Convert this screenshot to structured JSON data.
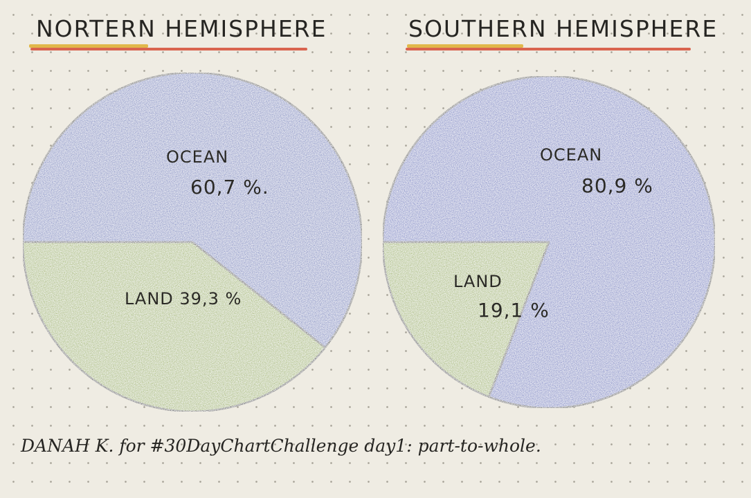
{
  "chart_data": [
    {
      "type": "pie",
      "title": "NORTERN HEMISPHERE",
      "slices": [
        {
          "label": "OCEAN",
          "value_label": "60,7 %.",
          "value": 60.7,
          "color": "#6f7fbf"
        },
        {
          "label": "LAND",
          "value_label": "39,3 %",
          "value": 39.3,
          "color": "#9db35a"
        }
      ]
    },
    {
      "type": "pie",
      "title": "SOUTHERN HEMISPHERE",
      "slices": [
        {
          "label": "OCEAN",
          "value_label": "80,9 %",
          "value": 80.9,
          "color": "#6a78c2"
        },
        {
          "label": "LAND",
          "value_label": "19,1 %",
          "value": 19.1,
          "color": "#9db35a"
        }
      ]
    }
  ],
  "footer": "DANAH K. for #30DayChartChallenge day1: part-to-whole."
}
